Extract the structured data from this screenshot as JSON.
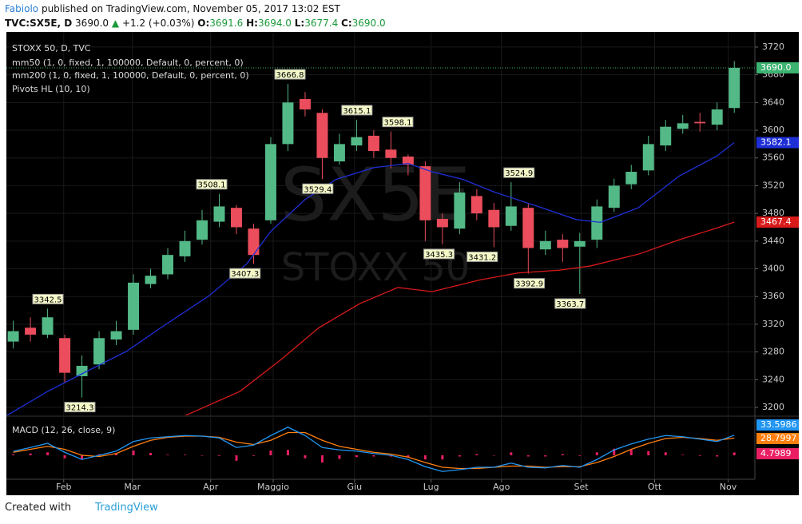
{
  "header": {
    "author": "Fabiolo",
    "published": "published on TradingView.com, November 05, 2017 13:02 EST",
    "symbol": "TVC:SX5E, D",
    "price": "3690.0",
    "arrow": "▲",
    "change": "+1.2 (+0.03%)",
    "o_label": "O:",
    "o": "3691.6",
    "h_label": "H:",
    "h": "3694.0",
    "l_label": "L:",
    "l": "3677.4",
    "c_label": "C:",
    "c": "3690.0"
  },
  "chart_data": {
    "type": "candlestick",
    "title": "STOXX 50, D, TVC",
    "watermark": [
      "SX5E",
      "STOXX 50"
    ],
    "indicator": "Pivots HL (10, 10)",
    "x": [
      2,
      7,
      12,
      17,
      22,
      27,
      32,
      37,
      42,
      47,
      52,
      57,
      62,
      67,
      72,
      77,
      82,
      87,
      92,
      97,
      102,
      107,
      112,
      117,
      122,
      127,
      132,
      137,
      142,
      147,
      152,
      157,
      162,
      167,
      172,
      177,
      182,
      187,
      192,
      197,
      202,
      207,
      212
    ],
    "open": [
      3295,
      3315,
      3305,
      3300,
      3245,
      3262,
      3298,
      3312,
      3378,
      3392,
      3418,
      3442,
      3468,
      3488,
      3458,
      3470,
      3580,
      3645,
      3625,
      3555,
      3578,
      3592,
      3572,
      3562,
      3548,
      3472,
      3458,
      3505,
      3485,
      3462,
      3488,
      3428,
      3442,
      3432,
      3442,
      3488,
      3522,
      3542,
      3578,
      3602,
      3612,
      3608,
      3632
    ],
    "high": [
      3325,
      3330,
      3342.5,
      3305,
      3275,
      3310,
      3325,
      3392,
      3400,
      3430,
      3455,
      3485,
      3508.1,
      3492,
      3465,
      3590,
      3666.8,
      3655,
      3630,
      3595,
      3615.1,
      3600,
      3598.1,
      3565,
      3555,
      3480,
      3525,
      3515,
      3495,
      3524.9,
      3495,
      3455,
      3450,
      3452,
      3500,
      3530,
      3550,
      3592,
      3615,
      3622,
      3625,
      3640,
      3700
    ],
    "low": [
      3285,
      3295,
      3300,
      3235,
      3214.3,
      3255,
      3290,
      3305,
      3372,
      3385,
      3410,
      3435,
      3460,
      3450,
      3407.3,
      3465,
      3570,
      3620,
      3529.4,
      3550,
      3570,
      3560,
      3545,
      3535,
      3440,
      3435.3,
      3450,
      3470,
      3431.2,
      3455,
      3392.9,
      3420,
      3410,
      3363.7,
      3430,
      3482,
      3515,
      3535,
      3570,
      3595,
      3598,
      3600,
      3625
    ],
    "close": [
      3310,
      3305,
      3330,
      3250,
      3260,
      3300,
      3310,
      3380,
      3390,
      3420,
      3440,
      3470,
      3490,
      3460,
      3420,
      3580,
      3640,
      3630,
      3560,
      3580,
      3590,
      3570,
      3560,
      3550,
      3470,
      3460,
      3510,
      3480,
      3460,
      3490,
      3430,
      3440,
      3430,
      3440,
      3490,
      3520,
      3540,
      3580,
      3605,
      3610,
      3610,
      3630,
      3690
    ],
    "up_color": "#53b987",
    "down_color": "#eb4d5c",
    "last_price": {
      "value": 3690,
      "label": "3690.0"
    },
    "last_color": "#3cb371",
    "series": [
      {
        "name": "mm50 (1, 0, fixed, 1, 100000, Default, 0, percent, 0)",
        "color": "#1e2fd6",
        "x": [
          0,
          12,
          21,
          35,
          45,
          59,
          70,
          77,
          87,
          96,
          107,
          117,
          124,
          133,
          142,
          156,
          166,
          173,
          184,
          196,
          207,
          212
        ],
        "values": [
          3188,
          3223,
          3246,
          3281,
          3315,
          3361,
          3407,
          3454,
          3500,
          3529,
          3546,
          3552,
          3540,
          3529,
          3511,
          3488,
          3471,
          3467,
          3488,
          3534,
          3563,
          3582.1
        ]
      },
      {
        "name": "mm200 (1, 0, fixed, 1, 100000, Default, 0, percent, 0)",
        "color": "#d91a1a",
        "x": [
          52,
          68,
          80,
          91,
          103,
          114,
          124,
          138,
          149,
          161,
          170,
          184,
          196,
          207,
          212
        ],
        "values": [
          3188,
          3223,
          3269,
          3315,
          3350,
          3373,
          3367,
          3384,
          3394,
          3398,
          3404,
          3421,
          3442,
          3459,
          3467.4
        ]
      }
    ],
    "pivot_highs": {
      "x": [
        12.1,
        59.8,
        82.6,
        102.1,
        114,
        149.3
      ],
      "values": [
        3342.5,
        3508.1,
        3666.8,
        3615.1,
        3598.1,
        3524.9
      ]
    },
    "pivot_lows": {
      "x": [
        21.4,
        69.5,
        90.7,
        126,
        138.6,
        152.3,
        164.2
      ],
      "values": [
        3214.3,
        3407.3,
        3529.4,
        3435.3,
        3431.2,
        3392.9,
        3363.7
      ]
    },
    "xlim": [
      0,
      218
    ],
    "xticks": [
      {
        "value": 16.7,
        "label": "Feb"
      },
      {
        "value": 36.7,
        "label": "Mar"
      },
      {
        "value": 59.5,
        "label": "Apr"
      },
      {
        "value": 77.7,
        "label": "Maggio"
      },
      {
        "value": 101.4,
        "label": "Giu"
      },
      {
        "value": 123.7,
        "label": "Lug"
      },
      {
        "value": 144.2,
        "label": "Ago"
      },
      {
        "value": 167.4,
        "label": "Set"
      },
      {
        "value": 188.8,
        "label": "Ott"
      },
      {
        "value": 210.2,
        "label": "Nov"
      }
    ],
    "ylim": [
      3188.5,
      3741.8
    ],
    "yticks": [
      3200,
      3240,
      3280,
      3320,
      3360,
      3400,
      3440,
      3480,
      3520,
      3560,
      3600,
      3640,
      3680,
      3720
    ],
    "grid": true,
    "macd": {
      "title": "MACD (12, 26, close, 9)",
      "ylim": [
        -40,
        64
      ],
      "macd": {
        "color": "#2196f3",
        "values": [
          6.7,
          13,
          20,
          5,
          -7,
          0,
          7,
          23,
          29,
          31,
          33,
          32,
          29,
          13,
          17,
          33,
          47,
          33,
          13,
          9,
          7,
          3,
          0,
          -7,
          -19,
          -27,
          -24,
          -20,
          -20,
          -13,
          -20,
          -21,
          -17,
          -20,
          -7,
          9,
          19,
          27,
          33,
          31,
          27,
          23,
          33.5986
        ]
      },
      "signal": {
        "color": "#ff7f0e",
        "values": [
          5,
          10,
          15,
          10,
          0,
          -2,
          3,
          15,
          25,
          30,
          32,
          32,
          30,
          22,
          18,
          25,
          38,
          38,
          25,
          15,
          10,
          5,
          2,
          -3,
          -12,
          -20,
          -22,
          -22,
          -20,
          -18,
          -18,
          -20,
          -19,
          -19,
          -12,
          -2,
          10,
          20,
          28,
          30,
          28,
          25,
          28.7997
        ]
      },
      "histogram": {
        "color": "#e91e63",
        "values": [
          1.7,
          3,
          5,
          -5,
          -7,
          2,
          4,
          8,
          4,
          1,
          1,
          0,
          -1,
          -9,
          -1,
          8,
          9,
          -5,
          -12,
          -6,
          -3,
          -2,
          -2,
          -4,
          -7,
          -7,
          -2,
          2,
          0,
          5,
          -2,
          -2,
          2,
          -1,
          5,
          11,
          9,
          7,
          5,
          1,
          -1,
          -2,
          4.7989
        ]
      }
    }
  },
  "footer": {
    "created": "Created with",
    "brand": "TradingView"
  }
}
